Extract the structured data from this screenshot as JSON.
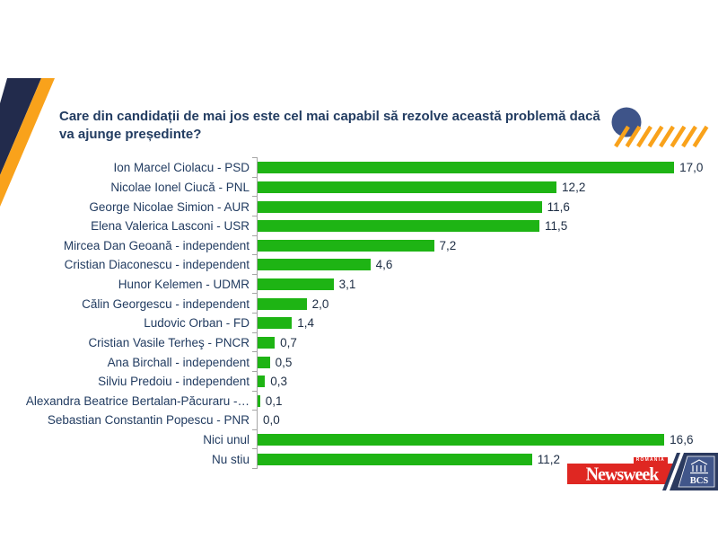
{
  "title": {
    "text": "Care din candidații de mai jos este cel mai capabil să rezolve această problemă dacă va ajunge președinte?"
  },
  "chart_data": {
    "type": "bar",
    "orientation": "horizontal",
    "title": "Care din candidații de mai jos este cel mai capabil să rezolve această problemă dacă va ajunge președinte?",
    "xlabel": "",
    "ylabel": "",
    "xlim": [
      0,
      17.5
    ],
    "grid": false,
    "legend": "none",
    "bar_color": "#1EB414",
    "categories": [
      "Ion Marcel Ciolacu - PSD",
      "Nicolae Ionel Ciucă - PNL",
      "George Nicolae Simion - AUR",
      "Elena Valerica Lasconi - USR",
      "Mircea Dan Geoană - independent",
      "Cristian Diaconescu - independent",
      "Hunor Kelemen - UDMR",
      "Călin Georgescu - independent",
      "Ludovic Orban - FD",
      "Cristian Vasile Terheş - PNCR",
      "Ana Birchall - independent",
      "Silviu Predoiu - independent",
      "Alexandra Beatrice Bertalan-Păcuraru -…",
      "Sebastian Constantin Popescu - PNR",
      "Nici unul",
      "Nu stiu"
    ],
    "values": [
      17.0,
      12.2,
      11.6,
      11.5,
      7.2,
      4.6,
      3.1,
      2.0,
      1.4,
      0.7,
      0.5,
      0.3,
      0.1,
      0.0,
      16.6,
      11.2
    ],
    "value_labels": [
      "17,0",
      "12,2",
      "11,6",
      "11,5",
      "7,2",
      "4,6",
      "3,1",
      "2,0",
      "1,4",
      "0,7",
      "0,5",
      "0,3",
      "0,1",
      "0,0",
      "16,6",
      "11,2"
    ]
  },
  "logos": {
    "newsweek": {
      "text": "Newsweek",
      "tag": "ROMÂNIA",
      "bg": "#DF2722"
    },
    "bcs": {
      "text": "BCS",
      "bg": "#2B3A5F"
    }
  },
  "colors": {
    "bar_green": "#1EB414",
    "title_navy": "#223C61",
    "decor_navy": "#222B4C",
    "decor_orange": "#F9A21B",
    "circle_blue": "#3E5489",
    "axis_gray": "#A6A6A6"
  }
}
